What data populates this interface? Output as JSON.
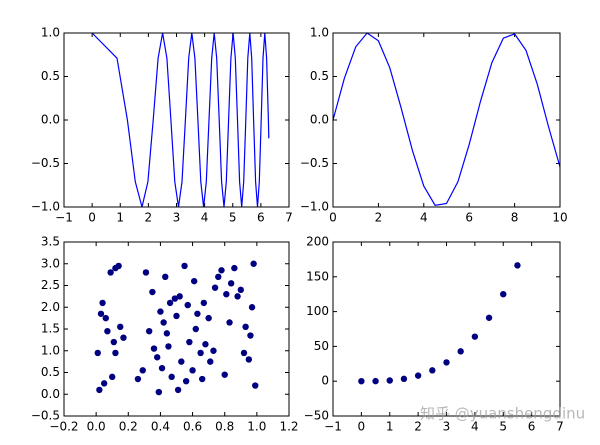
{
  "chart_data": [
    {
      "type": "line",
      "color": "#0000ff",
      "x": [
        0,
        0.886,
        1.253,
        1.535,
        1.772,
        1.982,
        2.171,
        2.345,
        2.507,
        2.659,
        2.802,
        2.939,
        3.07,
        3.195,
        3.316,
        3.433,
        3.545,
        3.654,
        3.76,
        3.863,
        3.963,
        4.061,
        4.157,
        4.25,
        4.342,
        4.431,
        4.519,
        4.605,
        4.69,
        4.772,
        4.854,
        4.934,
        5.013,
        5.091,
        5.168,
        5.243,
        5.317,
        5.391,
        5.463,
        5.535,
        5.605,
        5.675,
        5.743,
        5.811,
        5.879,
        5.945,
        6.011,
        6.076,
        6.14,
        6.203,
        6.267,
        6.283
      ],
      "values": [
        1,
        0.71,
        0,
        -0.71,
        -1,
        -0.71,
        0,
        0.71,
        1,
        0.71,
        0,
        -0.71,
        -1,
        -0.71,
        0,
        0.71,
        1,
        0.71,
        0,
        -0.71,
        -1,
        -0.71,
        0,
        0.71,
        1,
        0.71,
        0,
        -0.71,
        -1,
        -0.71,
        0,
        0.71,
        1,
        0.71,
        0,
        -0.71,
        -1,
        -0.71,
        0,
        0.71,
        1,
        0.71,
        0,
        -0.71,
        -1,
        -0.71,
        0,
        0.71,
        1,
        0.71,
        0,
        -0.21
      ],
      "xlim": [
        -1,
        7
      ],
      "ylim": [
        -1,
        1
      ],
      "xticks": [
        {
          "value": -1,
          "label": "−1"
        },
        0,
        1,
        2,
        3,
        4,
        5,
        6,
        7
      ],
      "yticks": [
        {
          "value": -1,
          "label": "−1.0"
        },
        {
          "value": -0.5,
          "label": "−0.5"
        },
        {
          "value": 0,
          "label": "0.0"
        },
        {
          "value": 0.5,
          "label": "0.5"
        },
        {
          "value": 1,
          "label": "1.0"
        }
      ]
    },
    {
      "type": "line",
      "color": "#0000ff",
      "x": [
        0,
        0.5,
        1,
        1.5,
        2,
        2.5,
        3,
        3.5,
        4,
        4.5,
        5,
        5.5,
        6,
        6.5,
        7,
        7.5,
        8,
        8.5,
        9,
        9.5,
        10
      ],
      "values": [
        0,
        0.48,
        0.84,
        1.0,
        0.91,
        0.6,
        0.14,
        -0.35,
        -0.76,
        -0.98,
        -0.96,
        -0.71,
        -0.28,
        0.22,
        0.66,
        0.94,
        0.99,
        0.8,
        0.41,
        -0.08,
        -0.54
      ],
      "xlim": [
        0,
        10
      ],
      "ylim": [
        -1,
        1
      ],
      "xticks": [
        0,
        2,
        4,
        6,
        8,
        10
      ],
      "yticks": [
        {
          "value": -1,
          "label": "−1.0"
        },
        {
          "value": -0.5,
          "label": "−0.5"
        },
        {
          "value": 0,
          "label": "0.0"
        },
        {
          "value": 0.5,
          "label": "0.5"
        },
        {
          "value": 1,
          "label": "1.0"
        }
      ]
    },
    {
      "type": "scatter",
      "color": "#000080",
      "x": [
        0.01,
        0.02,
        0.03,
        0.04,
        0.05,
        0.06,
        0.07,
        0.09,
        0.1,
        0.11,
        0.12,
        0.12,
        0.14,
        0.15,
        0.17,
        0.26,
        0.29,
        0.31,
        0.33,
        0.35,
        0.36,
        0.38,
        0.39,
        0.4,
        0.41,
        0.42,
        0.43,
        0.44,
        0.45,
        0.46,
        0.47,
        0.49,
        0.5,
        0.51,
        0.52,
        0.53,
        0.55,
        0.56,
        0.57,
        0.58,
        0.6,
        0.61,
        0.62,
        0.63,
        0.65,
        0.66,
        0.67,
        0.68,
        0.7,
        0.71,
        0.73,
        0.74,
        0.76,
        0.78,
        0.8,
        0.81,
        0.83,
        0.84,
        0.86,
        0.88,
        0.9,
        0.92,
        0.93,
        0.95,
        0.96,
        0.97,
        0.98,
        0.99
      ],
      "values": [
        0.95,
        0.1,
        1.85,
        2.1,
        0.25,
        1.75,
        1.45,
        2.8,
        0.4,
        1.2,
        2.9,
        0.95,
        2.95,
        1.55,
        1.3,
        0.35,
        0.55,
        2.8,
        1.45,
        2.35,
        1.05,
        0.85,
        0.05,
        1.9,
        0.6,
        1.65,
        2.7,
        1.4,
        1.1,
        2.1,
        0.4,
        2.2,
        1.8,
        0.1,
        2.25,
        0.75,
        2.95,
        0.3,
        2.05,
        1.2,
        0.55,
        2.6,
        1.5,
        1.85,
        0.95,
        0.35,
        2.1,
        1.15,
        1.75,
        0.75,
        1.0,
        2.45,
        2.7,
        2.85,
        0.45,
        2.3,
        1.65,
        2.55,
        2.9,
        2.25,
        2.4,
        0.95,
        1.55,
        0.8,
        1.35,
        2.0,
        3.0,
        0.2
      ],
      "xlim": [
        -0.2,
        1.2
      ],
      "ylim": [
        -0.5,
        3.5
      ],
      "xticks": [
        {
          "value": -0.2,
          "label": "−0.2"
        },
        {
          "value": 0,
          "label": "0.0"
        },
        0.2,
        0.4,
        0.6,
        0.8,
        {
          "value": 1,
          "label": "1.0"
        },
        1.2
      ],
      "yticks": [
        {
          "value": -0.5,
          "label": "−0.5"
        },
        {
          "value": 0,
          "label": "0.0"
        },
        0.5,
        {
          "value": 1,
          "label": "1.0"
        },
        1.5,
        {
          "value": 2,
          "label": "2.0"
        },
        2.5,
        {
          "value": 3,
          "label": "3.0"
        },
        3.5
      ]
    },
    {
      "type": "scatter",
      "color": "#000080",
      "x": [
        0,
        0.5,
        1,
        1.5,
        2,
        2.5,
        3,
        3.5,
        4,
        4.5,
        5,
        5.5
      ],
      "values": [
        0,
        0.125,
        1,
        3.4,
        8,
        15.6,
        27,
        42.9,
        64,
        91.1,
        125,
        166.4
      ],
      "xlim": [
        -1,
        7
      ],
      "ylim": [
        -50,
        200
      ],
      "xticks": [
        {
          "value": -1,
          "label": "−1"
        },
        0,
        1,
        2,
        3,
        4,
        5,
        6,
        7
      ],
      "yticks": [
        {
          "value": -50,
          "label": "−50"
        },
        0,
        50,
        100,
        150,
        200
      ]
    }
  ],
  "watermark": "知乎 @yuanshengdinu"
}
